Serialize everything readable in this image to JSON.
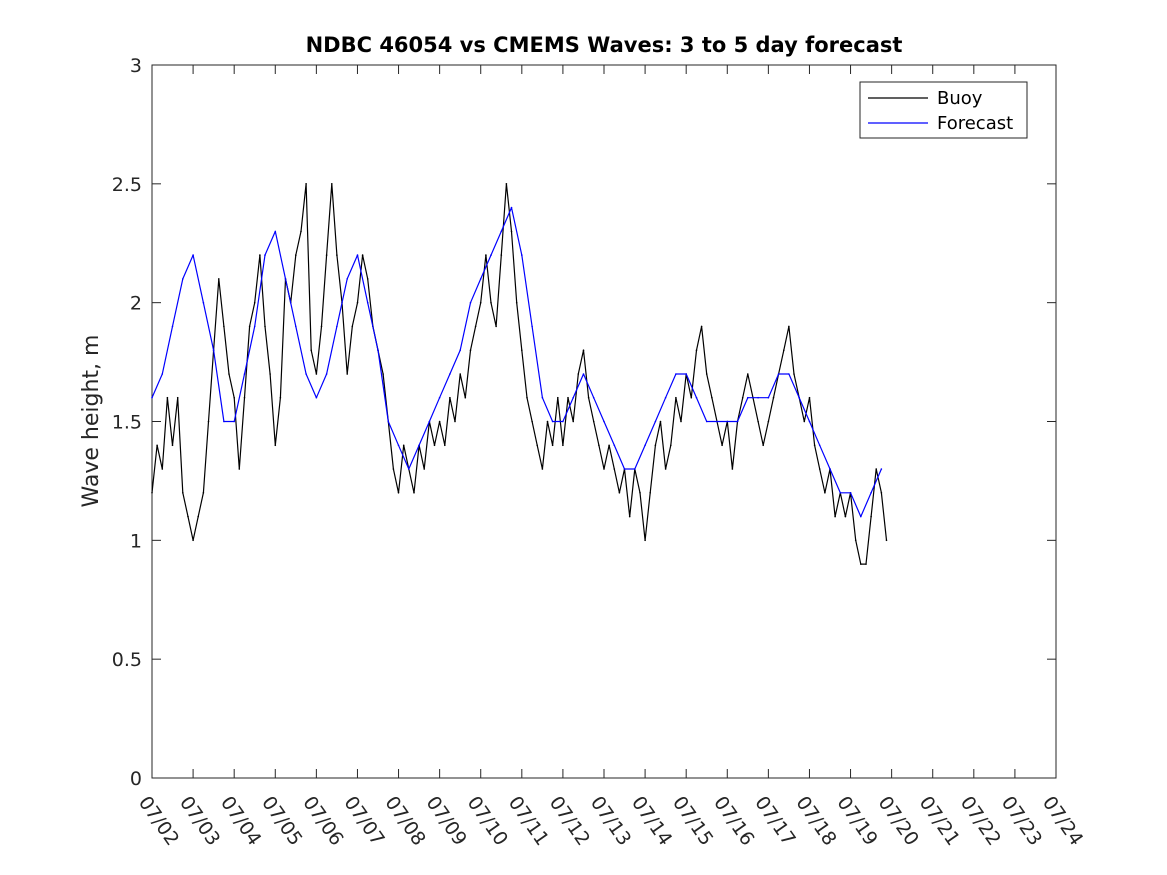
{
  "chart_data": {
    "type": "line",
    "title": "NDBC 46054 vs CMEMS Waves: 3 to 5 day forecast",
    "xlabel": "",
    "ylabel": "Wave height, m",
    "xlim": [
      "07/02",
      "07/24"
    ],
    "ylim": [
      0,
      3
    ],
    "x_ticks": [
      "07/02",
      "07/03",
      "07/04",
      "07/05",
      "07/06",
      "07/07",
      "07/08",
      "07/09",
      "07/10",
      "07/11",
      "07/12",
      "07/13",
      "07/14",
      "07/15",
      "07/16",
      "07/17",
      "07/18",
      "07/19",
      "07/20",
      "07/21",
      "07/22",
      "07/23",
      "07/24"
    ],
    "y_ticks": [
      "0",
      "0.5",
      "1",
      "1.5",
      "2",
      "2.5",
      "3"
    ],
    "grid": false,
    "legend": {
      "placement": "top-right",
      "entries": [
        "Buoy",
        "Forecast"
      ]
    },
    "series": [
      {
        "name": "Buoy",
        "color": "#000000",
        "points": [
          [
            "07/02 00:00",
            1.2
          ],
          [
            "07/02 03:00",
            1.4
          ],
          [
            "07/02 06:00",
            1.3
          ],
          [
            "07/02 09:00",
            1.6
          ],
          [
            "07/02 12:00",
            1.4
          ],
          [
            "07/02 15:00",
            1.6
          ],
          [
            "07/02 18:00",
            1.2
          ],
          [
            "07/02 21:00",
            1.1
          ],
          [
            "07/03 00:00",
            1.0
          ],
          [
            "07/03 03:00",
            1.1
          ],
          [
            "07/03 06:00",
            1.2
          ],
          [
            "07/03 09:00",
            1.5
          ],
          [
            "07/03 12:00",
            1.8
          ],
          [
            "07/03 15:00",
            2.1
          ],
          [
            "07/03 18:00",
            1.9
          ],
          [
            "07/03 21:00",
            1.7
          ],
          [
            "07/04 00:00",
            1.6
          ],
          [
            "07/04 03:00",
            1.3
          ],
          [
            "07/04 06:00",
            1.6
          ],
          [
            "07/04 09:00",
            1.9
          ],
          [
            "07/04 12:00",
            2.0
          ],
          [
            "07/04 15:00",
            2.2
          ],
          [
            "07/04 18:00",
            1.9
          ],
          [
            "07/04 21:00",
            1.7
          ],
          [
            "07/05 00:00",
            1.4
          ],
          [
            "07/05 03:00",
            1.6
          ],
          [
            "07/05 06:00",
            2.1
          ],
          [
            "07/05 09:00",
            2.0
          ],
          [
            "07/05 12:00",
            2.2
          ],
          [
            "07/05 15:00",
            2.3
          ],
          [
            "07/05 18:00",
            2.5
          ],
          [
            "07/05 21:00",
            1.8
          ],
          [
            "07/06 00:00",
            1.7
          ],
          [
            "07/06 03:00",
            1.9
          ],
          [
            "07/06 06:00",
            2.2
          ],
          [
            "07/06 09:00",
            2.5
          ],
          [
            "07/06 12:00",
            2.2
          ],
          [
            "07/06 15:00",
            2.0
          ],
          [
            "07/06 18:00",
            1.7
          ],
          [
            "07/06 21:00",
            1.9
          ],
          [
            "07/07 00:00",
            2.0
          ],
          [
            "07/07 03:00",
            2.2
          ],
          [
            "07/07 06:00",
            2.1
          ],
          [
            "07/07 09:00",
            1.9
          ],
          [
            "07/07 12:00",
            1.8
          ],
          [
            "07/07 15:00",
            1.7
          ],
          [
            "07/07 18:00",
            1.5
          ],
          [
            "07/07 21:00",
            1.3
          ],
          [
            "07/08 00:00",
            1.2
          ],
          [
            "07/08 03:00",
            1.4
          ],
          [
            "07/08 06:00",
            1.3
          ],
          [
            "07/08 09:00",
            1.2
          ],
          [
            "07/08 12:00",
            1.4
          ],
          [
            "07/08 15:00",
            1.3
          ],
          [
            "07/08 18:00",
            1.5
          ],
          [
            "07/08 21:00",
            1.4
          ],
          [
            "07/09 00:00",
            1.5
          ],
          [
            "07/09 03:00",
            1.4
          ],
          [
            "07/09 06:00",
            1.6
          ],
          [
            "07/09 09:00",
            1.5
          ],
          [
            "07/09 12:00",
            1.7
          ],
          [
            "07/09 15:00",
            1.6
          ],
          [
            "07/09 18:00",
            1.8
          ],
          [
            "07/09 21:00",
            1.9
          ],
          [
            "07/10 00:00",
            2.0
          ],
          [
            "07/10 03:00",
            2.2
          ],
          [
            "07/10 06:00",
            2.0
          ],
          [
            "07/10 09:00",
            1.9
          ],
          [
            "07/10 12:00",
            2.2
          ],
          [
            "07/10 15:00",
            2.5
          ],
          [
            "07/10 18:00",
            2.3
          ],
          [
            "07/10 21:00",
            2.0
          ],
          [
            "07/11 00:00",
            1.8
          ],
          [
            "07/11 03:00",
            1.6
          ],
          [
            "07/11 06:00",
            1.5
          ],
          [
            "07/11 09:00",
            1.4
          ],
          [
            "07/11 12:00",
            1.3
          ],
          [
            "07/11 15:00",
            1.5
          ],
          [
            "07/11 18:00",
            1.4
          ],
          [
            "07/11 21:00",
            1.6
          ],
          [
            "07/12 00:00",
            1.4
          ],
          [
            "07/12 03:00",
            1.6
          ],
          [
            "07/12 06:00",
            1.5
          ],
          [
            "07/12 09:00",
            1.7
          ],
          [
            "07/12 12:00",
            1.8
          ],
          [
            "07/12 15:00",
            1.6
          ],
          [
            "07/12 18:00",
            1.5
          ],
          [
            "07/12 21:00",
            1.4
          ],
          [
            "07/13 00:00",
            1.3
          ],
          [
            "07/13 03:00",
            1.4
          ],
          [
            "07/13 06:00",
            1.3
          ],
          [
            "07/13 09:00",
            1.2
          ],
          [
            "07/13 12:00",
            1.3
          ],
          [
            "07/13 15:00",
            1.1
          ],
          [
            "07/13 18:00",
            1.3
          ],
          [
            "07/13 21:00",
            1.2
          ],
          [
            "07/14 00:00",
            1.0
          ],
          [
            "07/14 03:00",
            1.2
          ],
          [
            "07/14 06:00",
            1.4
          ],
          [
            "07/14 09:00",
            1.5
          ],
          [
            "07/14 12:00",
            1.3
          ],
          [
            "07/14 15:00",
            1.4
          ],
          [
            "07/14 18:00",
            1.6
          ],
          [
            "07/14 21:00",
            1.5
          ],
          [
            "07/15 00:00",
            1.7
          ],
          [
            "07/15 03:00",
            1.6
          ],
          [
            "07/15 06:00",
            1.8
          ],
          [
            "07/15 09:00",
            1.9
          ],
          [
            "07/15 12:00",
            1.7
          ],
          [
            "07/15 15:00",
            1.6
          ],
          [
            "07/15 18:00",
            1.5
          ],
          [
            "07/15 21:00",
            1.4
          ],
          [
            "07/16 00:00",
            1.5
          ],
          [
            "07/16 03:00",
            1.3
          ],
          [
            "07/16 06:00",
            1.5
          ],
          [
            "07/16 09:00",
            1.6
          ],
          [
            "07/16 12:00",
            1.7
          ],
          [
            "07/16 15:00",
            1.6
          ],
          [
            "07/16 18:00",
            1.5
          ],
          [
            "07/16 21:00",
            1.4
          ],
          [
            "07/17 00:00",
            1.5
          ],
          [
            "07/17 03:00",
            1.6
          ],
          [
            "07/17 06:00",
            1.7
          ],
          [
            "07/17 09:00",
            1.8
          ],
          [
            "07/17 12:00",
            1.9
          ],
          [
            "07/17 15:00",
            1.7
          ],
          [
            "07/17 18:00",
            1.6
          ],
          [
            "07/17 21:00",
            1.5
          ],
          [
            "07/18 00:00",
            1.6
          ],
          [
            "07/18 03:00",
            1.4
          ],
          [
            "07/18 06:00",
            1.3
          ],
          [
            "07/18 09:00",
            1.2
          ],
          [
            "07/18 12:00",
            1.3
          ],
          [
            "07/18 15:00",
            1.1
          ],
          [
            "07/18 18:00",
            1.2
          ],
          [
            "07/18 21:00",
            1.1
          ],
          [
            "07/19 00:00",
            1.2
          ],
          [
            "07/19 03:00",
            1.0
          ],
          [
            "07/19 06:00",
            0.9
          ],
          [
            "07/19 09:00",
            0.9
          ],
          [
            "07/19 12:00",
            1.1
          ],
          [
            "07/19 15:00",
            1.3
          ],
          [
            "07/19 18:00",
            1.2
          ],
          [
            "07/19 21:00",
            1.0
          ]
        ]
      },
      {
        "name": "Forecast",
        "color": "#0000ff",
        "points": [
          [
            "07/02 00:00",
            1.6
          ],
          [
            "07/02 06:00",
            1.7
          ],
          [
            "07/02 12:00",
            1.9
          ],
          [
            "07/02 18:00",
            2.1
          ],
          [
            "07/03 00:00",
            2.2
          ],
          [
            "07/03 06:00",
            2.0
          ],
          [
            "07/03 12:00",
            1.8
          ],
          [
            "07/03 18:00",
            1.5
          ],
          [
            "07/04 00:00",
            1.5
          ],
          [
            "07/04 06:00",
            1.7
          ],
          [
            "07/04 12:00",
            1.9
          ],
          [
            "07/04 18:00",
            2.2
          ],
          [
            "07/05 00:00",
            2.3
          ],
          [
            "07/05 06:00",
            2.1
          ],
          [
            "07/05 12:00",
            1.9
          ],
          [
            "07/05 18:00",
            1.7
          ],
          [
            "07/06 00:00",
            1.6
          ],
          [
            "07/06 06:00",
            1.7
          ],
          [
            "07/06 12:00",
            1.9
          ],
          [
            "07/06 18:00",
            2.1
          ],
          [
            "07/07 00:00",
            2.2
          ],
          [
            "07/07 06:00",
            2.0
          ],
          [
            "07/07 12:00",
            1.8
          ],
          [
            "07/07 18:00",
            1.5
          ],
          [
            "07/08 00:00",
            1.4
          ],
          [
            "07/08 06:00",
            1.3
          ],
          [
            "07/08 12:00",
            1.4
          ],
          [
            "07/08 18:00",
            1.5
          ],
          [
            "07/09 00:00",
            1.6
          ],
          [
            "07/09 06:00",
            1.7
          ],
          [
            "07/09 12:00",
            1.8
          ],
          [
            "07/09 18:00",
            2.0
          ],
          [
            "07/10 00:00",
            2.1
          ],
          [
            "07/10 06:00",
            2.2
          ],
          [
            "07/10 12:00",
            2.3
          ],
          [
            "07/10 18:00",
            2.4
          ],
          [
            "07/11 00:00",
            2.2
          ],
          [
            "07/11 06:00",
            1.9
          ],
          [
            "07/11 12:00",
            1.6
          ],
          [
            "07/11 18:00",
            1.5
          ],
          [
            "07/12 00:00",
            1.5
          ],
          [
            "07/12 06:00",
            1.6
          ],
          [
            "07/12 12:00",
            1.7
          ],
          [
            "07/12 18:00",
            1.6
          ],
          [
            "07/13 00:00",
            1.5
          ],
          [
            "07/13 06:00",
            1.4
          ],
          [
            "07/13 12:00",
            1.3
          ],
          [
            "07/13 18:00",
            1.3
          ],
          [
            "07/14 00:00",
            1.4
          ],
          [
            "07/14 06:00",
            1.5
          ],
          [
            "07/14 12:00",
            1.6
          ],
          [
            "07/14 18:00",
            1.7
          ],
          [
            "07/15 00:00",
            1.7
          ],
          [
            "07/15 06:00",
            1.6
          ],
          [
            "07/15 12:00",
            1.5
          ],
          [
            "07/15 18:00",
            1.5
          ],
          [
            "07/16 00:00",
            1.5
          ],
          [
            "07/16 06:00",
            1.5
          ],
          [
            "07/16 12:00",
            1.6
          ],
          [
            "07/16 18:00",
            1.6
          ],
          [
            "07/17 00:00",
            1.6
          ],
          [
            "07/17 06:00",
            1.7
          ],
          [
            "07/17 12:00",
            1.7
          ],
          [
            "07/17 18:00",
            1.6
          ],
          [
            "07/18 00:00",
            1.5
          ],
          [
            "07/18 06:00",
            1.4
          ],
          [
            "07/18 12:00",
            1.3
          ],
          [
            "07/18 18:00",
            1.2
          ],
          [
            "07/19 00:00",
            1.2
          ],
          [
            "07/19 06:00",
            1.1
          ],
          [
            "07/19 12:00",
            1.2
          ],
          [
            "07/19 18:00",
            1.3
          ]
        ]
      }
    ]
  }
}
